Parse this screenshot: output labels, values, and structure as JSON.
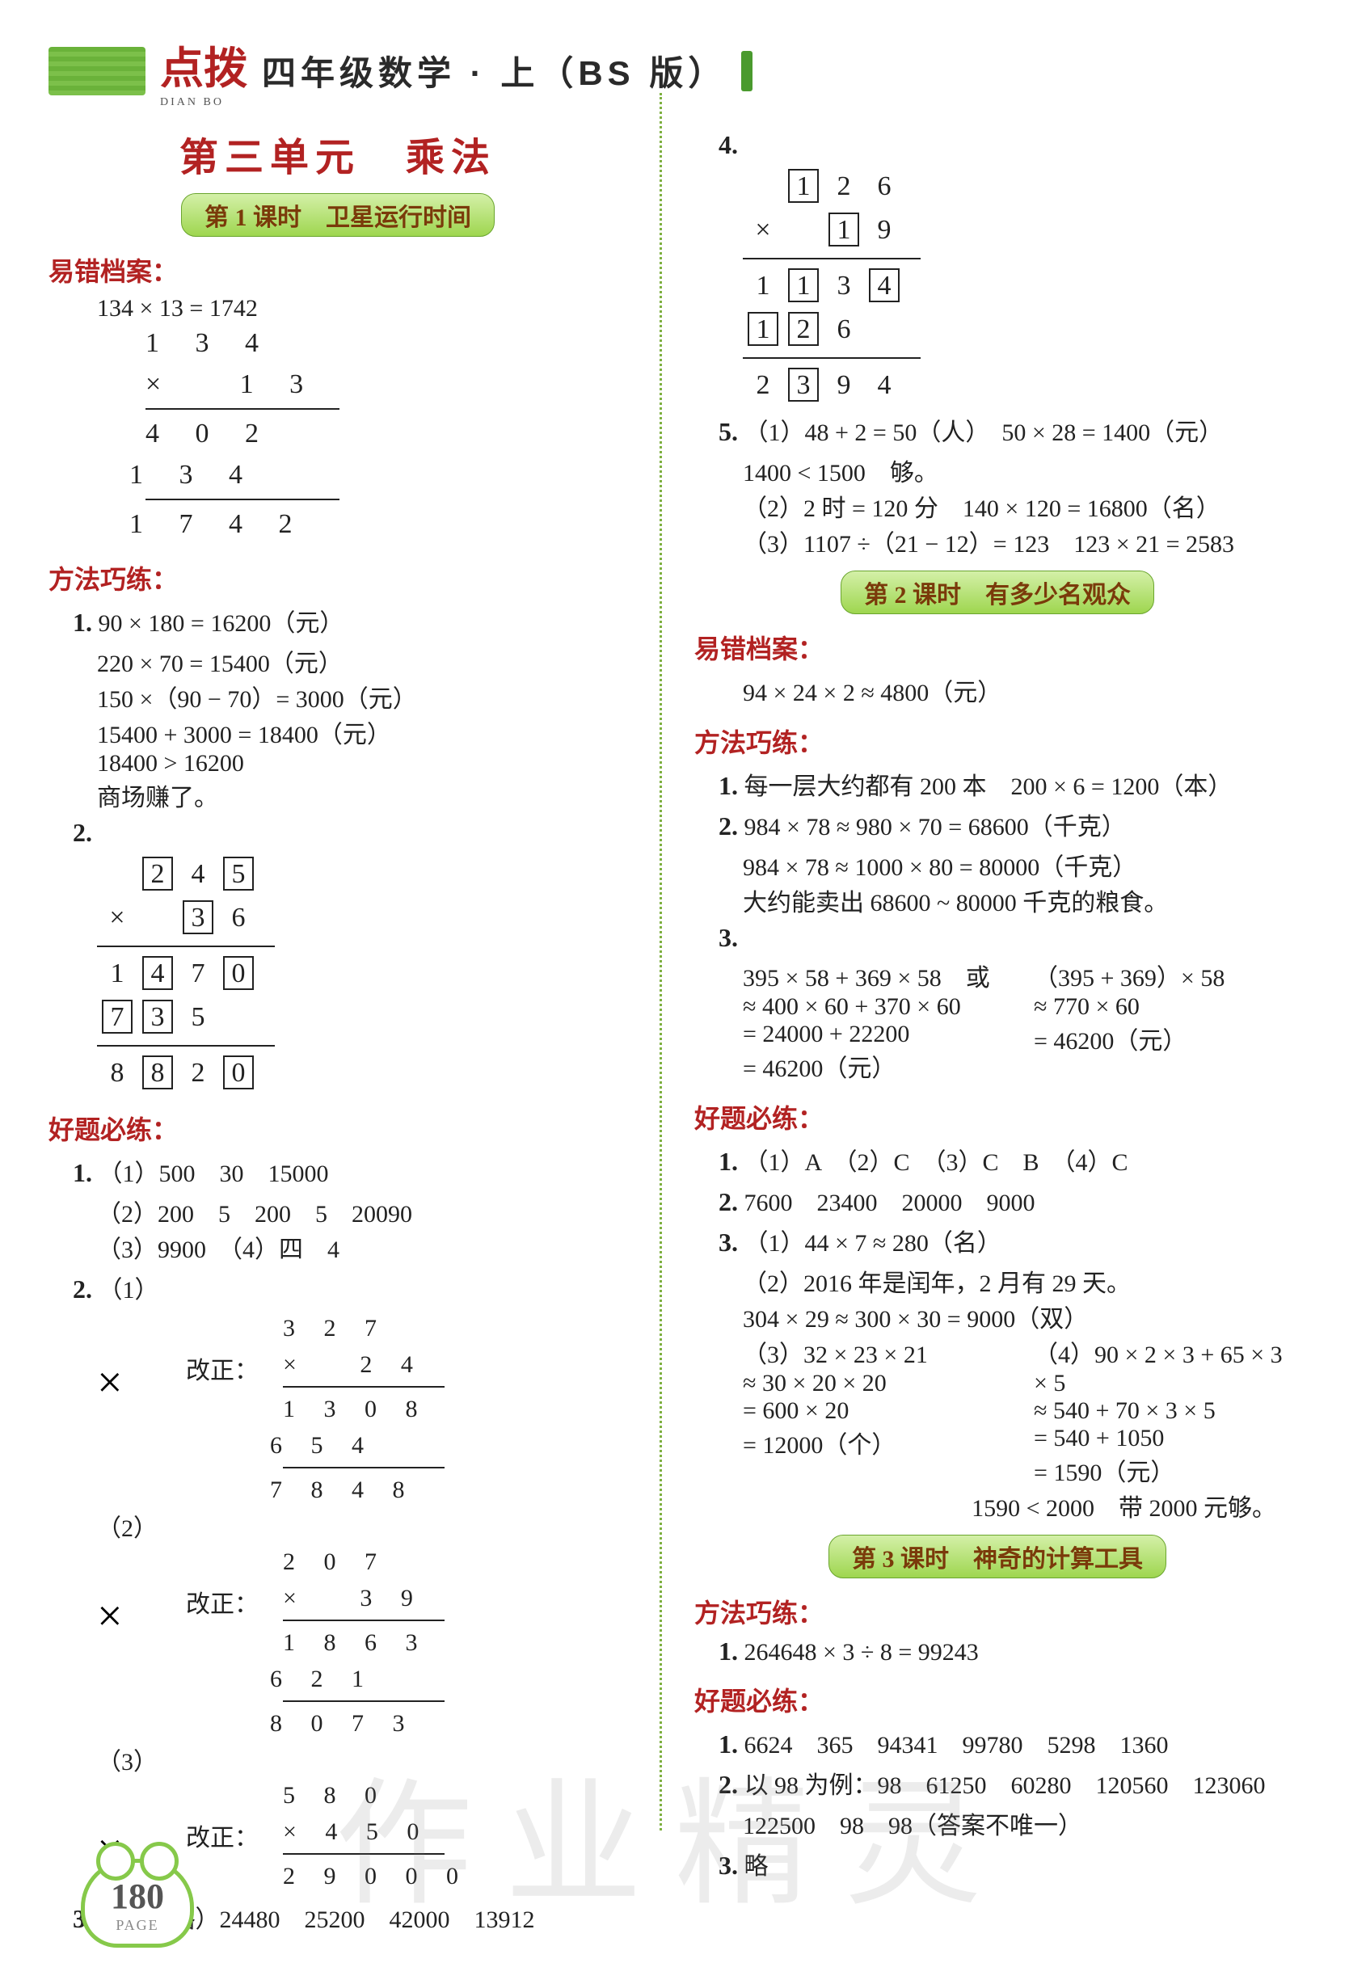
{
  "header": {
    "logo": "点拨",
    "logo_sub": "DIAN BO",
    "title": "四年级数学 · 上（BS 版）"
  },
  "unit_title": "第三单元　乘法",
  "lesson1": {
    "badge": "第 1 课时　卫星运行时间",
    "sec1_label": "易错档案：",
    "sec1_eq": "134 × 13 = 1742",
    "sec1_calc": [
      "1 3 4",
      "×   1 3",
      "4 0 2",
      "1 3 4",
      "1 7 4 2"
    ],
    "sec2_label": "方法巧练：",
    "p1_lines": [
      "90 × 180 = 16200（元）",
      "220 × 70 = 15400（元）",
      "150 ×（90 − 70）= 3000（元）",
      "15400 + 3000 = 18400（元）",
      "18400 > 16200",
      "商场赚了。"
    ],
    "p2_calc": {
      "r1": [
        "2",
        "4",
        "5"
      ],
      "op": "×",
      "r2": [
        "3",
        "6"
      ],
      "r3": [
        "1",
        "4",
        "7",
        "0"
      ],
      "r4": [
        "7",
        "3",
        "5"
      ],
      "r5": [
        "8",
        "8",
        "2",
        "0"
      ],
      "boxed": {
        "r1": [
          0,
          2
        ],
        "r2": [
          0
        ],
        "r3": [
          1,
          3
        ],
        "r4": [
          0,
          1
        ],
        "r5": [
          1,
          3
        ]
      }
    },
    "sec3_label": "好题必练：",
    "q1": [
      "（1）500　30　15000",
      "（2）200　5　200　5　20090",
      "（3）9900　（4）四　4"
    ],
    "q2_items": [
      {
        "label": "（1）",
        "calc": [
          "3 2 7",
          "×   2 4",
          "1 3 0 8",
          "6 5 4",
          "7 8 4 8"
        ]
      },
      {
        "label": "（2）",
        "calc": [
          "2 0 7",
          "×   3 9",
          "1 8 6 3",
          "6 2 1",
          "8 0 7 3"
        ]
      },
      {
        "label": "（3）",
        "calc": [
          "5 8 0",
          "× 4 5 0",
          "2 9 0 0 0"
        ]
      }
    ],
    "q2_prefix": "×　改正：",
    "q3": "（竖式略）24480　25200　42000　13912",
    "q4_calc": {
      "r1": [
        "1",
        "2",
        "6"
      ],
      "op": "×",
      "r2": [
        "1",
        "9"
      ],
      "r3": [
        "1",
        "1",
        "3",
        "4"
      ],
      "r4": [
        "1",
        "2",
        "6"
      ],
      "r5": [
        "2",
        "3",
        "9",
        "4"
      ],
      "boxed": {
        "r1": [
          0
        ],
        "r2": [
          0
        ],
        "r3": [
          1,
          3
        ],
        "r4": [
          0,
          1
        ],
        "r5": [
          1
        ]
      }
    },
    "q5": [
      "（1）48 + 2 = 50（人）　50 × 28 = 1400（元）",
      "1400 < 1500　够。",
      "（2）2 时 = 120 分　140 × 120 = 16800（名）",
      "（3）1107 ÷（21 − 12）= 123　123 × 21 = 2583"
    ]
  },
  "lesson2": {
    "badge": "第 2 课时　有多少名观众",
    "sec1_label": "易错档案：",
    "sec1_line": "94 × 24 × 2 ≈ 4800（元）",
    "sec2_label": "方法巧练：",
    "p1": "每一层大约都有 200 本　200 × 6 = 1200（本）",
    "p2": [
      "984 × 78 ≈ 980 × 70 = 68600（千克）",
      "984 × 78 ≈ 1000 × 80 = 80000（千克）",
      "大约能卖出 68600 ~ 80000 千克的粮食。"
    ],
    "p3": {
      "left": [
        "395 × 58 + 369 × 58　或",
        "≈ 400 × 60 + 370 × 60",
        "= 24000 + 22200",
        "= 46200（元）"
      ],
      "right": [
        "（395 + 369）× 58",
        "≈ 770 × 60",
        "= 46200（元）",
        ""
      ]
    },
    "sec3_label": "好题必练：",
    "q1": "（1）A　（2）C　（3）C　B　（4）C",
    "q2": "7600　23400　20000　9000",
    "q3": [
      "（1）44 × 7 ≈ 280（名）",
      "（2）2016 年是闰年，2 月有 29 天。",
      "304 × 29 ≈ 300 × 30 = 9000（双）"
    ],
    "q3_34": {
      "left": [
        "（3）32 × 23 × 21",
        "≈ 30 × 20 × 20",
        "= 600 × 20",
        "= 12000（个）"
      ],
      "right": [
        "（4）90 × 2 × 3 + 65 × 3 × 5",
        "≈ 540 + 70 × 3 × 5",
        "= 540 + 1050",
        "= 1590（元）"
      ]
    },
    "q3_tail": "1590 < 2000　带 2000 元够。"
  },
  "lesson3": {
    "badge": "第 3 课时　神奇的计算工具",
    "sec1_label": "方法巧练：",
    "p1": "264648 × 3 ÷ 8 = 99243",
    "sec2_label": "好题必练：",
    "q1": "6624　365　94341　99780　5298　1360",
    "q2": "以 98 为例：98　61250　60280　120560　123060",
    "q2b": "122500　98　98（答案不唯一）",
    "q3": "略"
  },
  "page_num": "180",
  "page_label": "PAGE",
  "watermark": "作业精灵",
  "labels": {
    "n1": "1.",
    "n2": "2.",
    "n3": "3.",
    "n4": "4.",
    "n5": "5."
  },
  "colors": {
    "accent": "#b22222",
    "green": "#7cc04a"
  }
}
